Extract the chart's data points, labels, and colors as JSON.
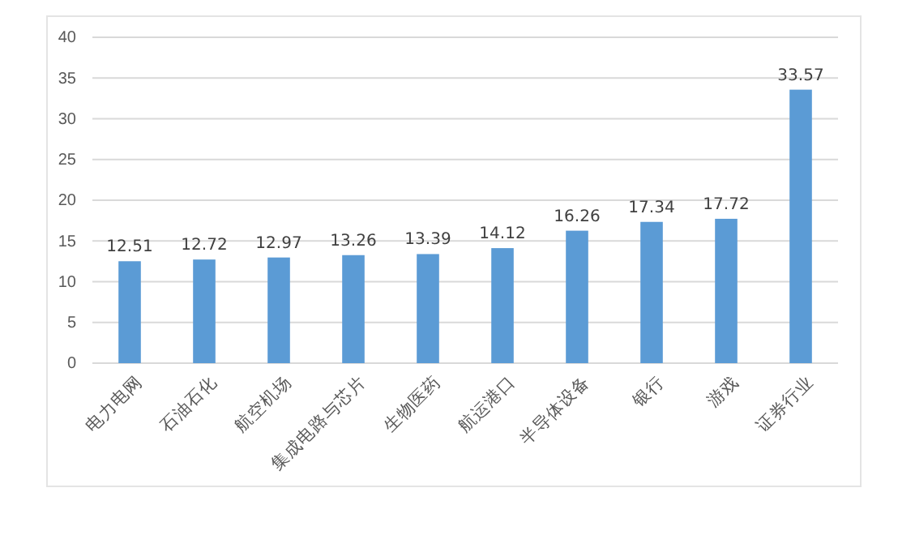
{
  "chart_data": {
    "type": "bar",
    "categories": [
      "电力电网",
      "石油石化",
      "航空机场",
      "集成电路与芯片",
      "生物医药",
      "航运港口",
      "半导体设备",
      "银行",
      "游戏",
      "证券行业"
    ],
    "values": [
      12.51,
      12.72,
      12.97,
      13.26,
      13.39,
      14.12,
      16.26,
      17.34,
      17.72,
      33.57
    ],
    "color": "#5b9bd5",
    "ylim": [
      0,
      40
    ],
    "yticks": [
      0,
      5,
      10,
      15,
      20,
      25,
      30,
      35,
      40
    ],
    "grid": "y",
    "data_labels": true
  }
}
